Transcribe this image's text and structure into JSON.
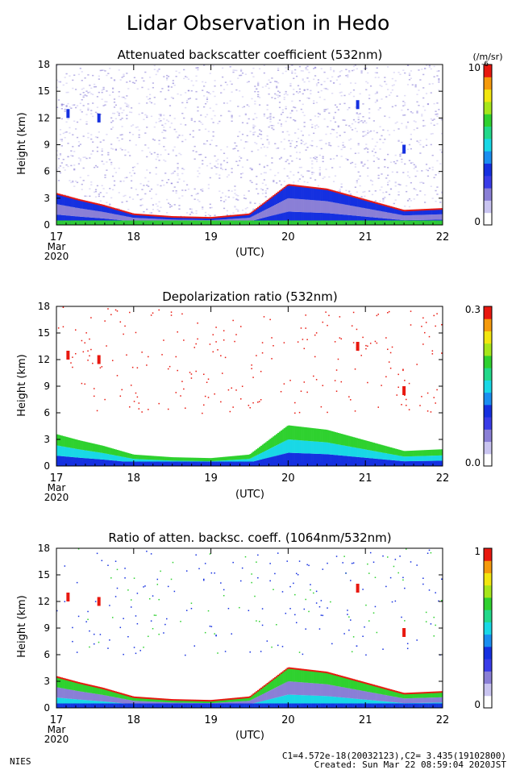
{
  "page": {
    "title": "Lidar Observation in Hedo",
    "footer_left": "NIES",
    "footer_line1": "C1=4.572e-18(20032123),C2= 3.435(19102800)",
    "footer_line2": "Created: Sun Mar 22 08:59:04 2020JST"
  },
  "colors": {
    "white": "#ffffff",
    "purple": "#8a7fd6",
    "blue": "#1530e0",
    "cyan": "#19d8e6",
    "green": "#2fd12f",
    "yellow": "#f2e60f",
    "red": "#e8180f"
  },
  "chart_data": [
    {
      "type": "heatmap",
      "title": "Attenuated backscatter coefficient (532nm)",
      "ylabel": "Height (km)",
      "xlabel": "(UTC)",
      "x_tick_labels": [
        "17",
        "18",
        "19",
        "20",
        "21",
        "22"
      ],
      "x_start_sublabels": [
        "Mar",
        "2020"
      ],
      "y_tick_labels": [
        "0",
        "3",
        "6",
        "9",
        "12",
        "15",
        "18"
      ],
      "ylim": [
        0,
        18
      ],
      "colorbar": {
        "unit": "(/m/sr)",
        "max_label": "10",
        "max_exponent": "-6",
        "min_label": "0"
      },
      "description_layers": [
        {
          "feature": "boundary_layer_top_km",
          "x_days": [
            17.0,
            17.3,
            17.6,
            18.0,
            18.5,
            19.0,
            19.5,
            20.0,
            20.5,
            21.0,
            21.5,
            22.0
          ],
          "height_km": [
            3.5,
            2.8,
            2.2,
            1.2,
            0.9,
            0.8,
            1.2,
            4.5,
            4.0,
            2.8,
            1.6,
            1.8
          ]
        },
        {
          "feature": "cirrus",
          "x_days": [
            17.15,
            17.55,
            20.9,
            21.5
          ],
          "height_km": [
            12,
            11.5,
            13,
            8
          ]
        }
      ]
    },
    {
      "type": "heatmap",
      "title": "Depolarization ratio (532nm)",
      "ylabel": "Height (km)",
      "xlabel": "(UTC)",
      "x_tick_labels": [
        "17",
        "18",
        "19",
        "20",
        "21",
        "22"
      ],
      "x_start_sublabels": [
        "Mar",
        "2020"
      ],
      "y_tick_labels": [
        "0",
        "3",
        "6",
        "9",
        "12",
        "15",
        "18"
      ],
      "ylim": [
        0,
        18
      ],
      "colorbar": {
        "max_label": "0.3",
        "min_label": "0.0"
      }
    },
    {
      "type": "heatmap",
      "title": "Ratio of atten. backsc. coeff. (1064nm/532nm)",
      "ylabel": "Height (km)",
      "xlabel": "(UTC)",
      "x_tick_labels": [
        "17",
        "18",
        "19",
        "20",
        "21",
        "22"
      ],
      "x_start_sublabels": [
        "Mar",
        "2020"
      ],
      "y_tick_labels": [
        "0",
        "3",
        "6",
        "9",
        "12",
        "15",
        "18"
      ],
      "ylim": [
        0,
        18
      ],
      "colorbar": {
        "max_label": "1",
        "min_label": "0"
      }
    }
  ]
}
